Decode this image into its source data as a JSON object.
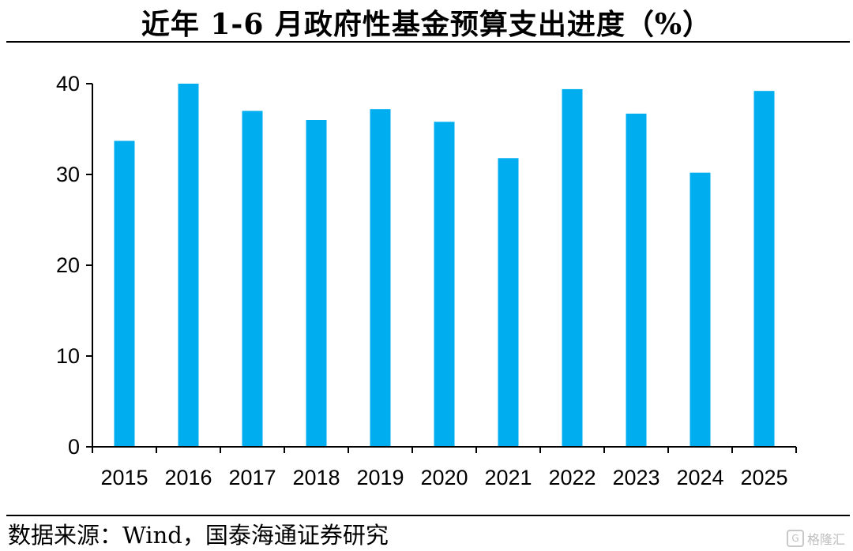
{
  "title": "近年 1-6 月政府性基金预算支出进度（%）",
  "source": "数据来源：Wind，国泰海通证券研究",
  "watermark": {
    "text": "格隆汇",
    "icon_text": "G",
    "icon": "gelonghui-logo-icon"
  },
  "chart_data": {
    "type": "bar",
    "title": "近年 1-6 月政府性基金预算支出进度（%）",
    "xlabel": "",
    "ylabel": "",
    "categories": [
      "2015",
      "2016",
      "2017",
      "2018",
      "2019",
      "2020",
      "2021",
      "2022",
      "2023",
      "2024",
      "2025"
    ],
    "values": [
      33.7,
      40.0,
      37.0,
      36.0,
      37.2,
      35.8,
      31.8,
      39.4,
      36.7,
      30.2,
      39.2
    ],
    "ylim": [
      0,
      40
    ],
    "yticks": [
      0,
      10,
      20,
      30,
      40
    ],
    "bar_color": "#00AEEF",
    "grid": false,
    "legend": "none"
  }
}
